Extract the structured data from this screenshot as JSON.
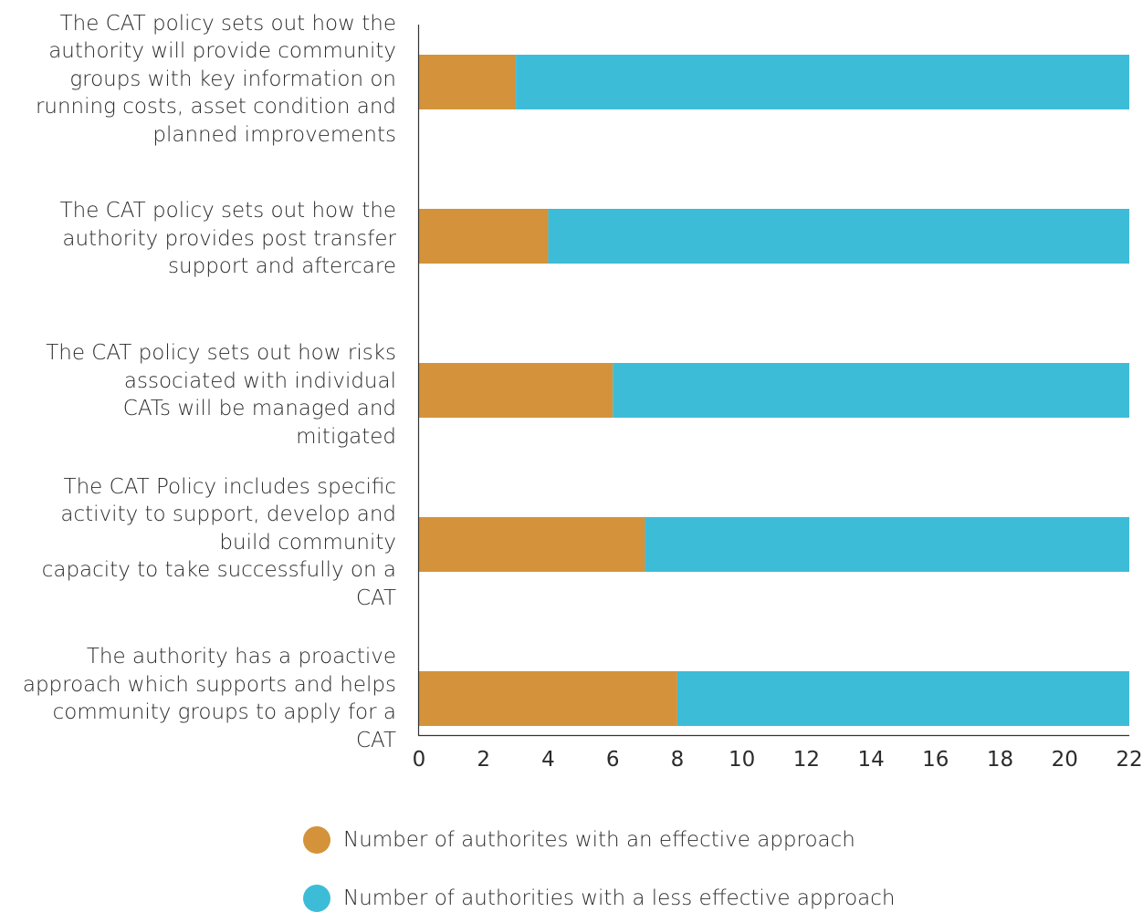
{
  "chart_data": {
    "type": "bar",
    "orientation": "horizontal",
    "stacked": true,
    "categories": [
      "The CAT policy sets out how the authority will provide community groups with key information on running costs, asset condition and planned improvements",
      "The CAT policy sets out how the authority provides post transfer support and aftercare",
      "The CAT policy sets out how risks associated with individual CATs will be managed and mitigated",
      "The CAT Policy includes specific activity to support, develop and build community capacity to take successfully on a CAT",
      "The authority has a proactive approach which  supports and helps community groups to apply for a CAT"
    ],
    "category_lines": [
      [
        "The CAT policy sets out how the",
        "authority will provide community",
        "groups with key information on",
        "running costs, asset condition and",
        "planned improvements"
      ],
      [
        "The CAT policy sets out how the",
        "authority provides post transfer",
        "support and aftercare"
      ],
      [
        "The CAT policy sets out how risks",
        "associated with individual",
        "CATs will be managed and",
        "mitigated"
      ],
      [
        "The CAT Policy includes specific",
        "activity to support, develop and",
        "build community",
        "capacity to take successfully on a",
        "CAT"
      ],
      [
        "The authority has a proactive",
        "approach which  supports and helps",
        "community groups to apply for a",
        "CAT"
      ]
    ],
    "series": [
      {
        "name": "Number of authorites with an effective approach",
        "color": "#D4933A",
        "values": [
          3,
          4,
          6,
          7,
          8
        ]
      },
      {
        "name": "Number of authorities with a less effective  approach",
        "color": "#3DBCD8",
        "values": [
          19,
          18,
          16,
          15,
          14
        ]
      }
    ],
    "xlim": [
      0,
      22
    ],
    "xticks": [
      "0",
      "2",
      "4",
      "6",
      "8",
      "10",
      "12",
      "14",
      "16",
      "18",
      "20",
      "22"
    ],
    "grid": false,
    "legend_position": "bottom"
  }
}
